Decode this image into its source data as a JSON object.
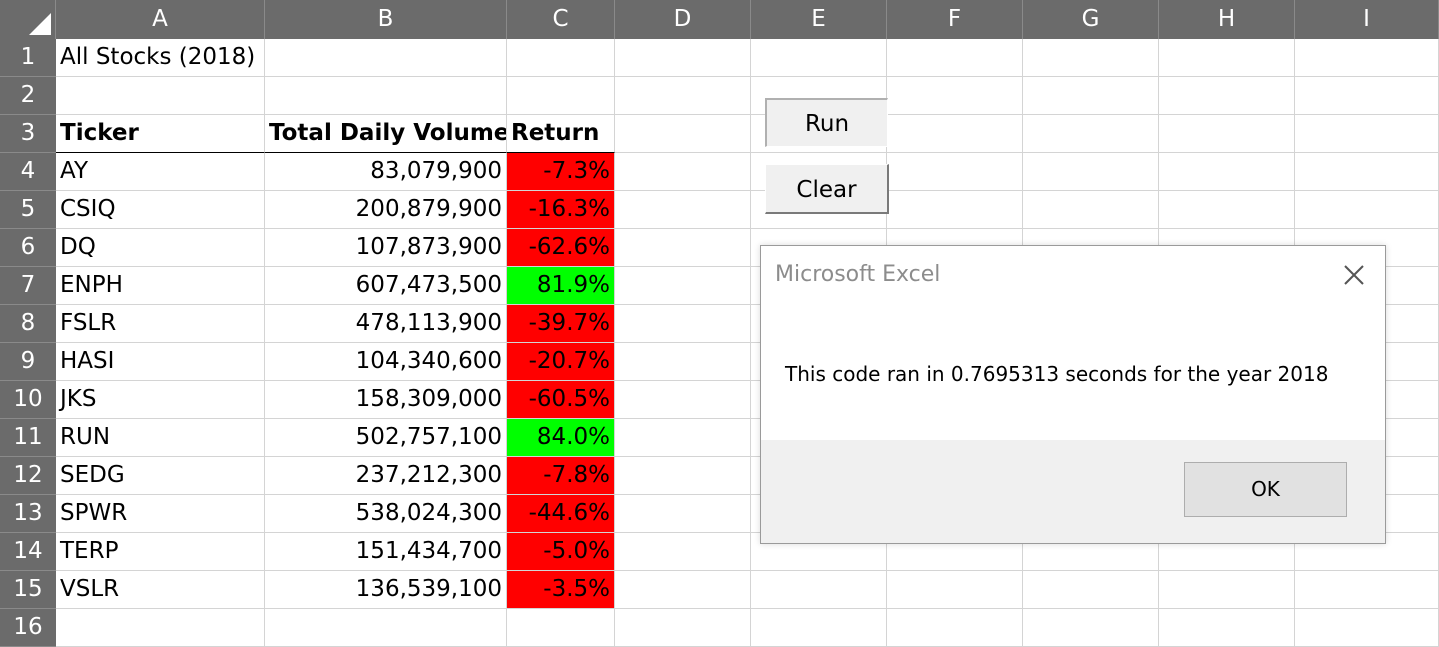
{
  "columns": [
    "A",
    "B",
    "C",
    "D",
    "E",
    "F",
    "G",
    "H",
    "I"
  ],
  "row_numbers": [
    "1",
    "2",
    "3",
    "4",
    "5",
    "6",
    "7",
    "8",
    "9",
    "10",
    "11",
    "12",
    "13",
    "14",
    "15",
    "16"
  ],
  "title_cell": "All Stocks (2018)",
  "headers": {
    "ticker": "Ticker",
    "volume": "Total Daily Volume",
    "return": "Return"
  },
  "rows": [
    {
      "ticker": "AY",
      "volume": "83,079,900",
      "return": "-7.3%",
      "status": "negative"
    },
    {
      "ticker": "CSIQ",
      "volume": "200,879,900",
      "return": "-16.3%",
      "status": "negative"
    },
    {
      "ticker": "DQ",
      "volume": "107,873,900",
      "return": "-62.6%",
      "status": "negative"
    },
    {
      "ticker": "ENPH",
      "volume": "607,473,500",
      "return": "81.9%",
      "status": "positive"
    },
    {
      "ticker": "FSLR",
      "volume": "478,113,900",
      "return": "-39.7%",
      "status": "negative"
    },
    {
      "ticker": "HASI",
      "volume": "104,340,600",
      "return": "-20.7%",
      "status": "negative"
    },
    {
      "ticker": "JKS",
      "volume": "158,309,000",
      "return": "-60.5%",
      "status": "negative"
    },
    {
      "ticker": "RUN",
      "volume": "502,757,100",
      "return": "84.0%",
      "status": "positive"
    },
    {
      "ticker": "SEDG",
      "volume": "237,212,300",
      "return": "-7.8%",
      "status": "negative"
    },
    {
      "ticker": "SPWR",
      "volume": "538,024,300",
      "return": "-44.6%",
      "status": "negative"
    },
    {
      "ticker": "TERP",
      "volume": "151,434,700",
      "return": "-5.0%",
      "status": "negative"
    },
    {
      "ticker": "VSLR",
      "volume": "136,539,100",
      "return": "-3.5%",
      "status": "negative"
    }
  ],
  "buttons": {
    "run": "Run",
    "clear": "Clear"
  },
  "dialog": {
    "title": "Microsoft Excel",
    "message": "This code ran in 0.7695313 seconds for the year 2018",
    "ok": "OK"
  },
  "colors": {
    "negative": "#ff0000",
    "positive": "#00ff00",
    "header_bg": "#6b6b6b"
  },
  "icons": {
    "dialog_close": "close-icon",
    "select_all": "select-all-triangle-icon"
  }
}
